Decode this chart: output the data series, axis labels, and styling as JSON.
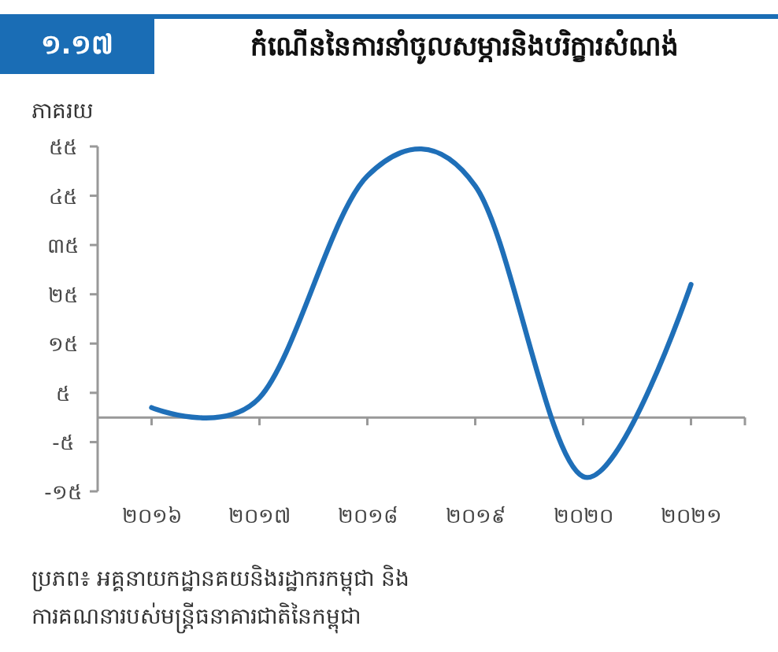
{
  "chart_data": {
    "type": "line",
    "title": "កំណើននៃការនាំចូលសម្ភារនិងបរិក្ខារសំណង់",
    "ylabel": "ភាគរយ",
    "categories": [
      "២០១៦",
      "២០១៧",
      "២០១៨",
      "២០១៩",
      "២០២០",
      "២០២១"
    ],
    "series": [
      {
        "color": "#1f6fb8",
        "values": [
          2,
          4,
          49,
          47,
          -12,
          27
        ]
      }
    ],
    "ylim": [
      -15,
      55
    ],
    "yticks": [
      {
        "value": -15,
        "label": "-១៥"
      },
      {
        "value": -5,
        "label": "-៥"
      },
      {
        "value": 5,
        "label": "៥"
      },
      {
        "value": 15,
        "label": "១៥"
      },
      {
        "value": 25,
        "label": "២៥"
      },
      {
        "value": 35,
        "label": "៣៥"
      },
      {
        "value": 45,
        "label": "៤៥"
      },
      {
        "value": 55,
        "label": "៥៥"
      }
    ],
    "grid": false,
    "marker": "none",
    "line_style": "solid",
    "annotations": [
      "១.១៧",
      "ប្រភព៖ អគ្គនាយកដ្ឋានគយនិងរដ្ឋាករកម្ពុជា និង",
      "ការគណនារបស់មន្ត្រីធនាគារជាតិនៃកម្ពុជា"
    ]
  }
}
